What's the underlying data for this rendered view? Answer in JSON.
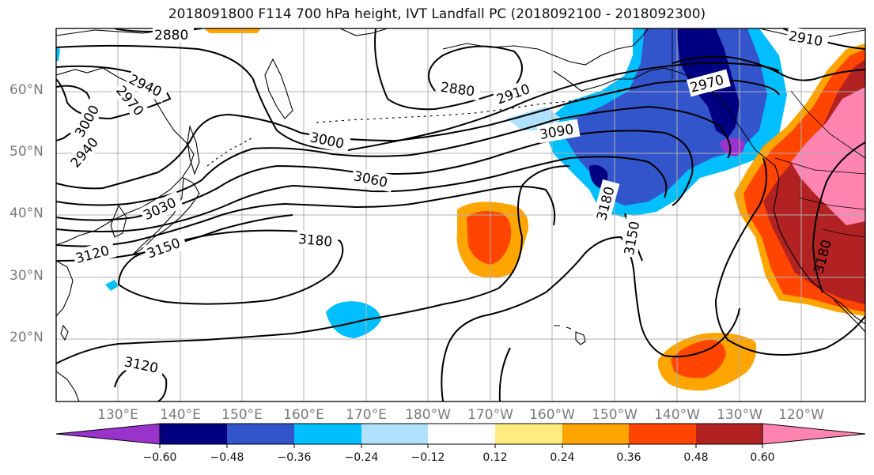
{
  "title": "2018091800 F114 700 hPa height, IVT Landfall PC (2018092100 - 2018092300)",
  "lat_labels": [
    "60°N",
    "50°N",
    "40°N",
    "30°N",
    "20°N"
  ],
  "lon_labels": [
    "130°E",
    "140°E",
    "150°E",
    "160°E",
    "170°E",
    "180°W",
    "170°W",
    "160°W",
    "150°W",
    "140°W",
    "130°W",
    "120°W"
  ],
  "contour_labels": [
    "2880",
    "2940",
    "2970",
    "3000",
    "2940",
    "3030",
    "3120",
    "3150",
    "3000",
    "3060",
    "3180",
    "2880",
    "2910",
    "3090",
    "2970",
    "3180",
    "3150",
    "2910",
    "3180",
    "3120"
  ],
  "colorbar": {
    "tick_labels": [
      "−0.60",
      "−0.48",
      "−0.36",
      "−0.24",
      "−0.12",
      "0.12",
      "0.24",
      "0.36",
      "0.48",
      "0.60"
    ],
    "colors": [
      "#9933cc",
      "#000080",
      "#3355cc",
      "#00bfff",
      "#b0e2ff",
      "#ffffff",
      "#ffeb80",
      "#ffa500",
      "#ff4500",
      "#b22222",
      "#ff85b0"
    ]
  }
}
